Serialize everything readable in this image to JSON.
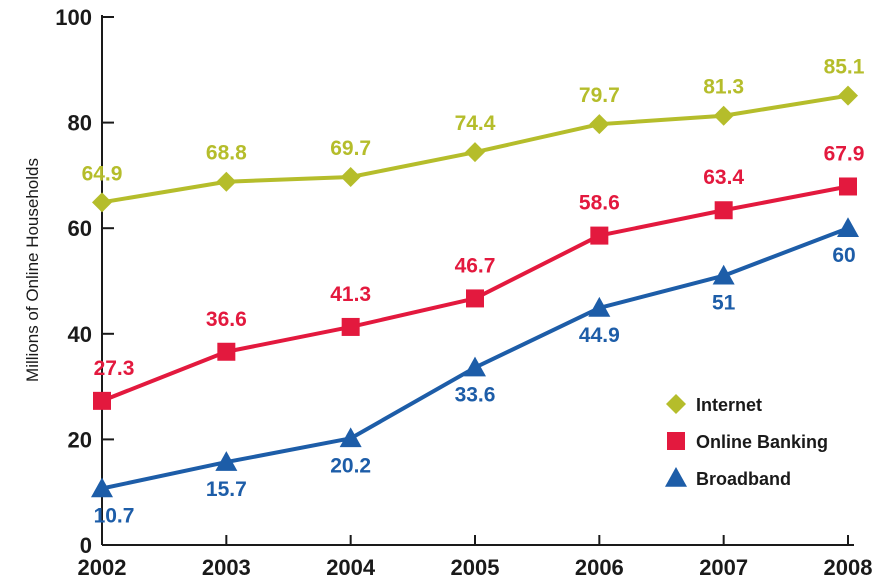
{
  "chart_data": {
    "type": "line",
    "title": "",
    "xlabel": "",
    "ylabel": "Millions of Online Households",
    "categories": [
      "2002",
      "2003",
      "2004",
      "2005",
      "2006",
      "2007",
      "2008"
    ],
    "ylim": [
      0,
      100
    ],
    "yticks": [
      0,
      20,
      40,
      60,
      80,
      100
    ],
    "grid": false,
    "legend_position": "bottom-right",
    "series": [
      {
        "name": "Internet",
        "color": "#b5bd2b",
        "marker": "diamond-icon",
        "values": [
          64.9,
          68.8,
          69.7,
          74.4,
          79.7,
          81.3,
          85.1
        ],
        "labels": [
          "64.9",
          "68.8",
          "69.7",
          "74.4",
          "79.7",
          "81.3",
          "85.1"
        ]
      },
      {
        "name": "Online Banking",
        "color": "#e3193e",
        "marker": "square-icon",
        "values": [
          27.3,
          36.6,
          41.3,
          46.7,
          58.6,
          63.4,
          67.9
        ],
        "labels": [
          "27.3",
          "36.6",
          "41.3",
          "46.7",
          "58.6",
          "63.4",
          "67.9"
        ]
      },
      {
        "name": "Broadband",
        "color": "#1d5da8",
        "marker": "triangle-icon",
        "values": [
          10.7,
          15.7,
          20.2,
          33.6,
          44.9,
          51,
          60
        ],
        "labels": [
          "10.7",
          "15.7",
          "20.2",
          "33.6",
          "44.9",
          "51",
          "60"
        ]
      }
    ]
  }
}
